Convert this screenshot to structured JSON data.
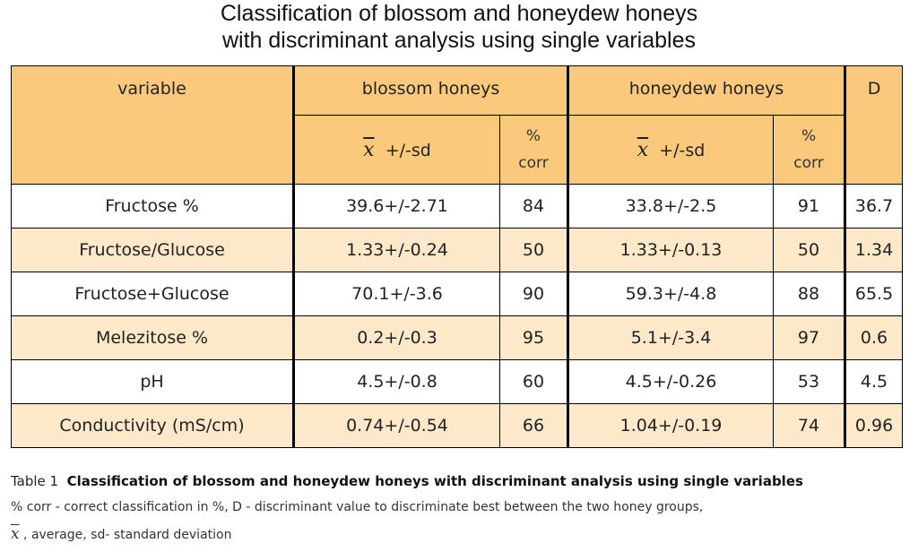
{
  "title": [
    "Classification of blossom and honeydew honeys",
    "with discriminant analysis using single variables"
  ],
  "table": {
    "header": {
      "variable": "variable",
      "groups": [
        "blossom honeys",
        "honeydew honeys"
      ],
      "d": "D",
      "mean_symbol": "x",
      "mean_label": "+/-sd",
      "corr_label": [
        "%",
        "corr"
      ]
    },
    "rows": [
      [
        "Fructose %",
        "39.6+/-2.71",
        "84",
        "33.8+/-2.5",
        "91",
        "36.7"
      ],
      [
        "Fructose/Glucose",
        "1.33+/-0.24",
        "50",
        "1.33+/-0.13",
        "50",
        "1.34"
      ],
      [
        "Fructose+Glucose",
        "70.1+/-3.6",
        "90",
        "59.3+/-4.8",
        "88",
        "65.5"
      ],
      [
        "Melezitose %",
        "0.2+/-0.3",
        "95",
        "5.1+/-3.4",
        "97",
        "0.6"
      ],
      [
        "pH",
        "4.5+/-0.8",
        "60",
        "4.5+/-0.26",
        "53",
        "4.5"
      ],
      [
        "Conductivity (mS/cm)",
        "0.74+/-0.54",
        "66",
        "1.04+/-0.19",
        "74",
        "0.96"
      ]
    ]
  },
  "caption": {
    "label": "Table 1",
    "title": "Classification of blossom and honeydew honeys with discriminant analysis using single variables"
  },
  "notes": {
    "corr": "% corr -  correct classification in %, D - discriminant value to discriminate best between the two honey groups,",
    "symbol_text": ", average, sd- standard deviation"
  }
}
